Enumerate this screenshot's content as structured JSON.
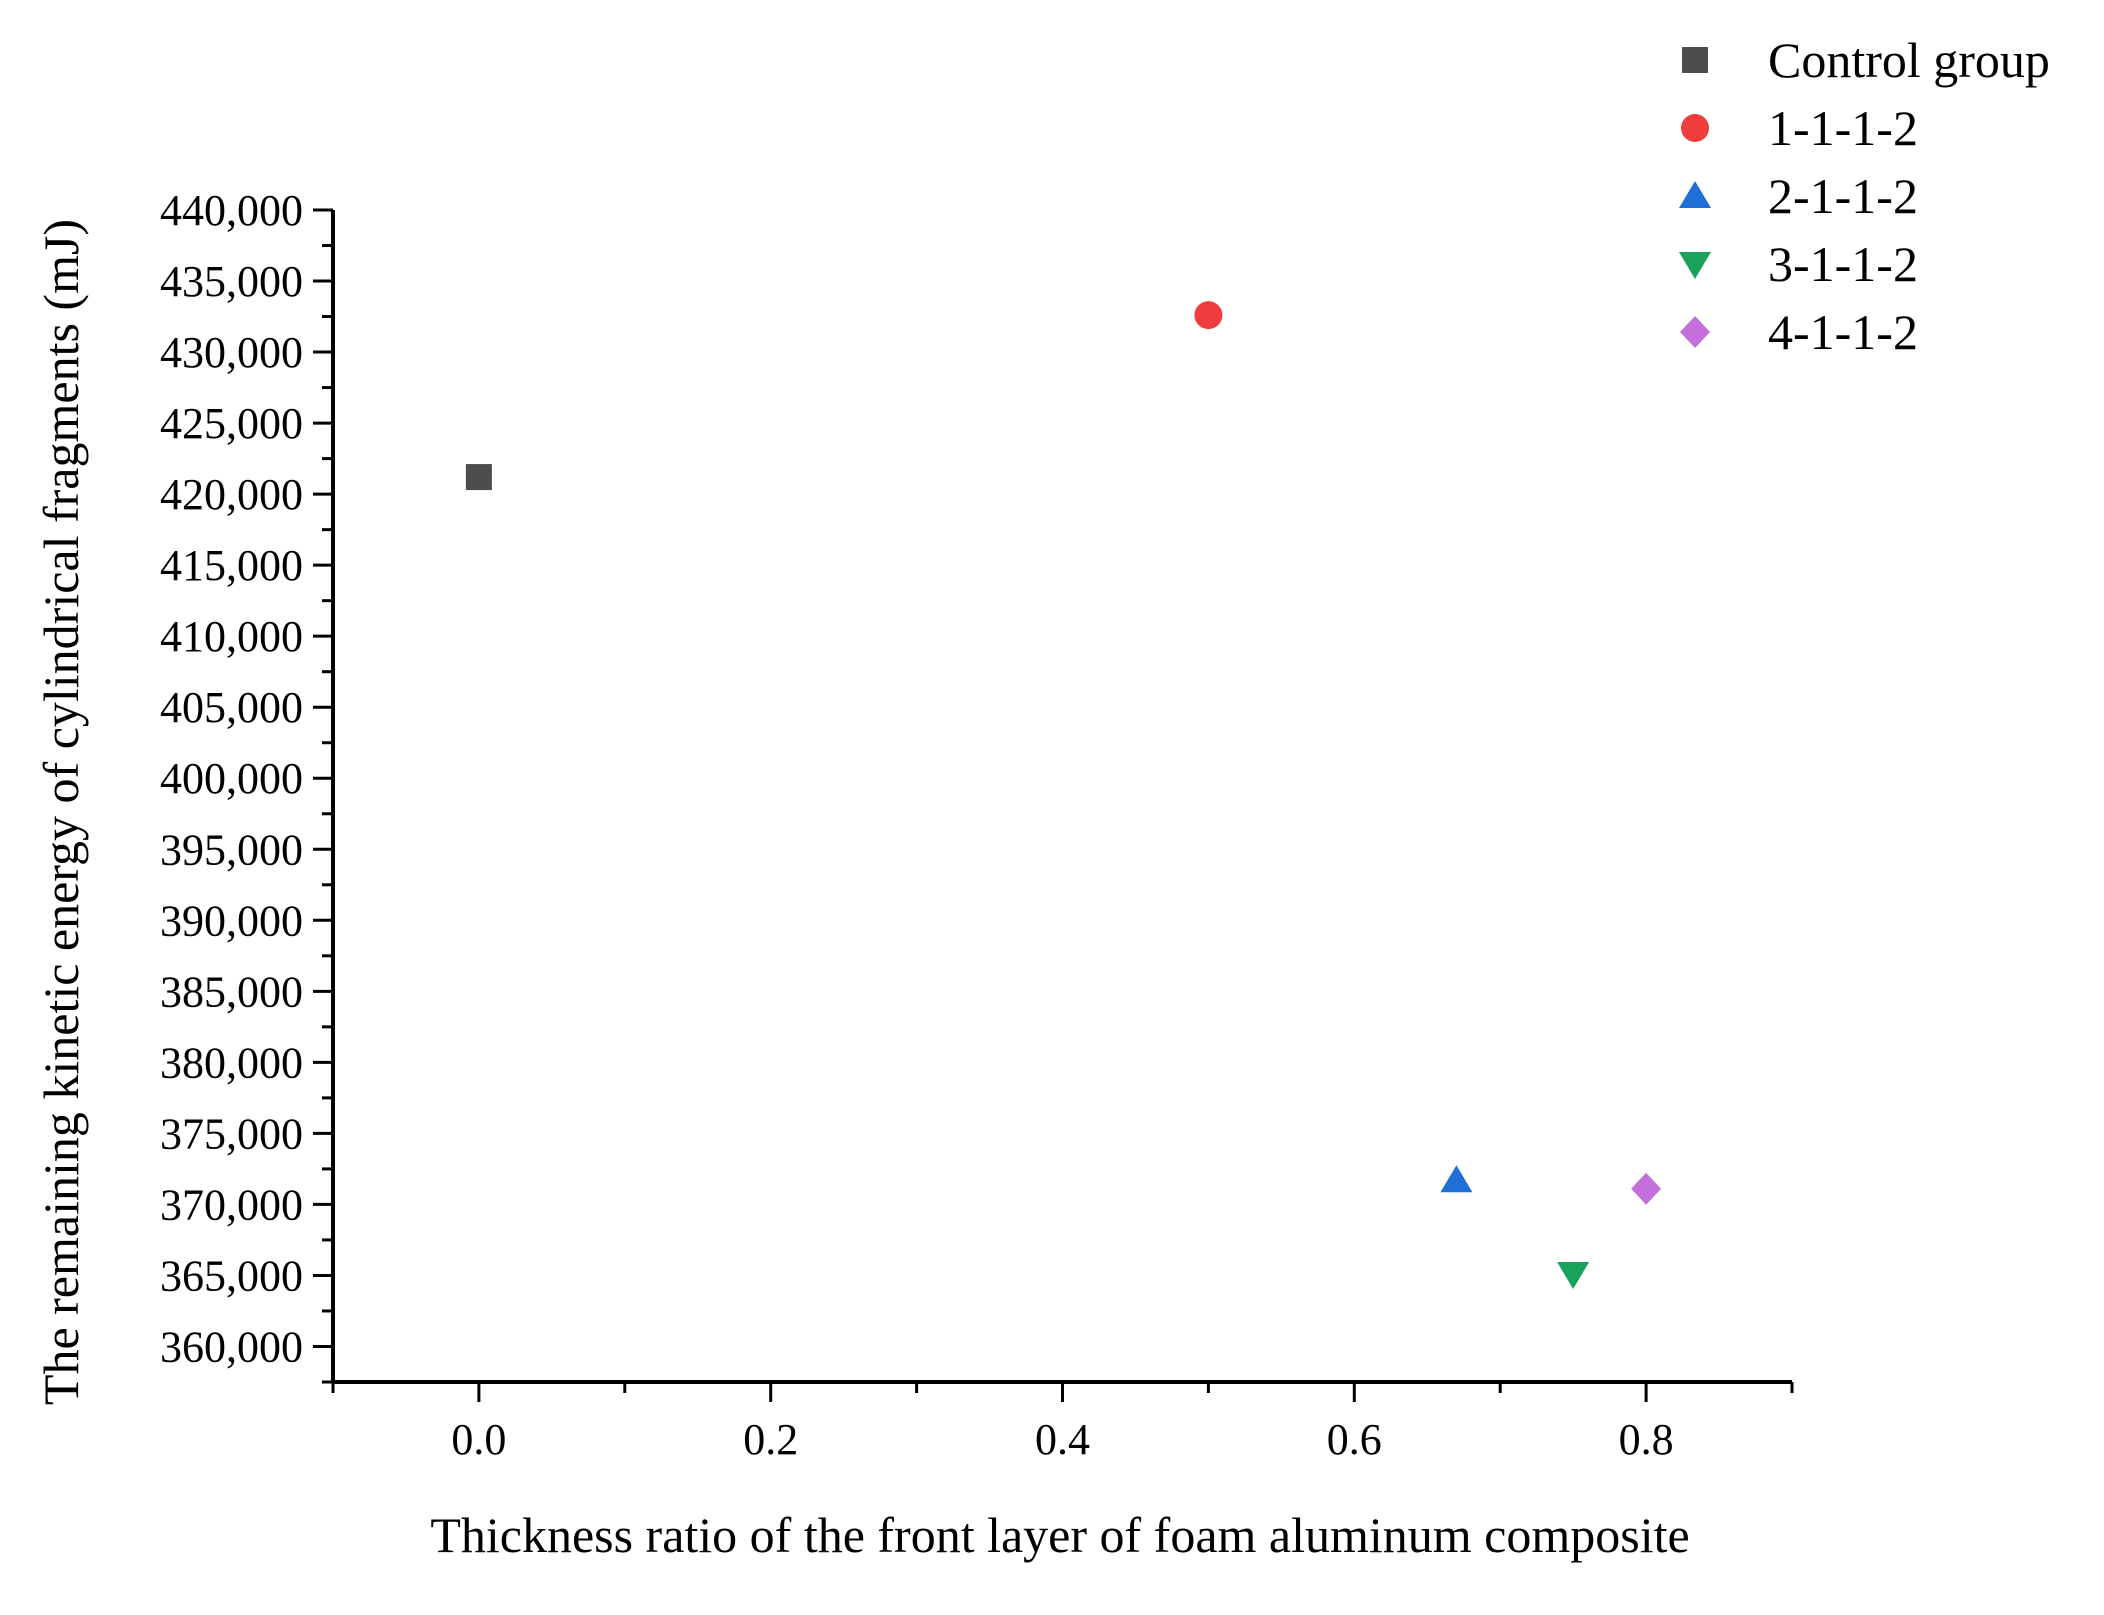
{
  "chart_data": {
    "type": "scatter",
    "title": "",
    "xlabel": "Thickness ratio of the front layer of foam aluminum composite",
    "ylabel": "The remaining kinetic energy of cylindrical fragments (mJ)",
    "xlim": [
      -0.1,
      0.9
    ],
    "ylim": [
      357500,
      440000
    ],
    "x_ticks": [
      0.0,
      0.2,
      0.4,
      0.6,
      0.8
    ],
    "x_tick_labels": [
      "0.0",
      "0.2",
      "0.4",
      "0.6",
      "0.8"
    ],
    "y_ticks": [
      360000,
      365000,
      370000,
      375000,
      380000,
      385000,
      390000,
      395000,
      400000,
      405000,
      410000,
      415000,
      420000,
      425000,
      430000,
      435000,
      440000
    ],
    "y_tick_labels": [
      "360,000",
      "365,000",
      "370,000",
      "375,000",
      "380,000",
      "385,000",
      "390,000",
      "395,000",
      "400,000",
      "405,000",
      "410,000",
      "415,000",
      "420,000",
      "425,000",
      "430,000",
      "435,000",
      "440,000"
    ],
    "grid": false,
    "legend_position": "top-right",
    "series": [
      {
        "name": "Control group",
        "marker": "square",
        "color": "#4d4d4d",
        "x": [
          0.0
        ],
        "y": [
          421200
        ]
      },
      {
        "name": "1-1-1-2",
        "marker": "circle",
        "color": "#f03c3c",
        "x": [
          0.5
        ],
        "y": [
          432600
        ]
      },
      {
        "name": "2-1-1-2",
        "marker": "triangle-up",
        "color": "#1f6fd6",
        "x": [
          0.67
        ],
        "y": [
          371700
        ]
      },
      {
        "name": "3-1-1-2",
        "marker": "triangle-down",
        "color": "#1aa15a",
        "x": [
          0.75
        ],
        "y": [
          365100
        ]
      },
      {
        "name": "4-1-1-2",
        "marker": "diamond",
        "color": "#c36fdc",
        "x": [
          0.8
        ],
        "y": [
          371100
        ]
      }
    ]
  }
}
